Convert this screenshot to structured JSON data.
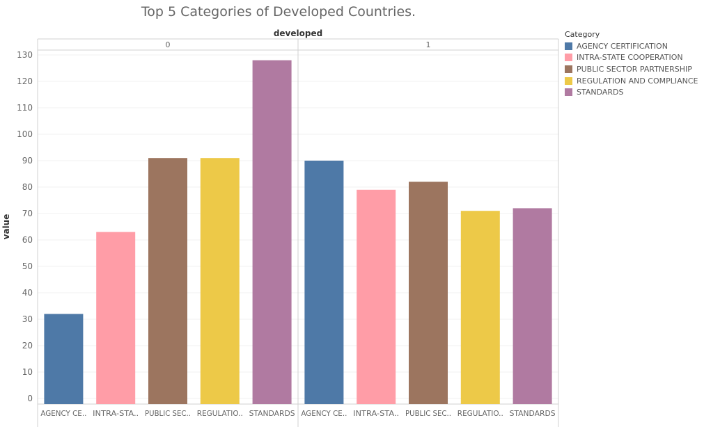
{
  "chart_data": {
    "type": "bar",
    "title": "Top 5 Categories of Developed Countries.",
    "column_header": "developed",
    "ylabel": "value",
    "xlabel": "",
    "ylim": [
      0,
      135
    ],
    "yticks": [
      0,
      10,
      20,
      30,
      40,
      50,
      60,
      70,
      80,
      90,
      100,
      110,
      120,
      130
    ],
    "grid": true,
    "legend_title": "Category",
    "legend_position": "right",
    "categories": [
      "AGENCY CERTIFICATION",
      "INTRA-STATE COOPERATION",
      "PUBLIC SECTOR PARTNERSHIP",
      "REGULATION AND COMPLIANCE",
      "STANDARDS"
    ],
    "tick_labels": [
      "AGENCY CE..",
      "INTRA-STA..",
      "PUBLIC SEC..",
      "REGULATIO..",
      "STANDARDS"
    ],
    "colors": [
      "#4e79a7",
      "#ff9da7",
      "#9c755f",
      "#edc948",
      "#b07aa1"
    ],
    "panels": [
      {
        "label": "0",
        "values": [
          32,
          63,
          91,
          91,
          128
        ]
      },
      {
        "label": "1",
        "values": [
          90,
          79,
          82,
          71,
          72
        ]
      }
    ]
  }
}
